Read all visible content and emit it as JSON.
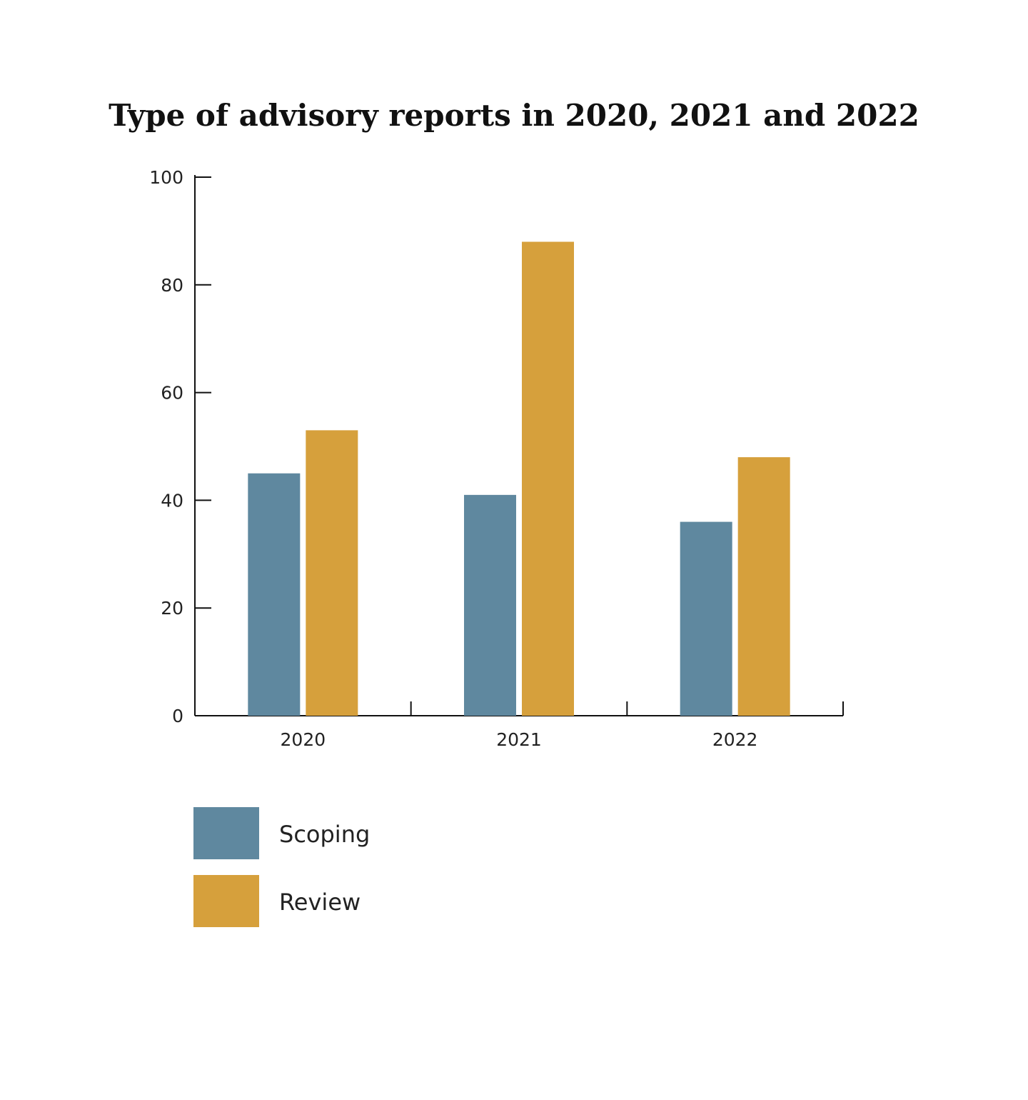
{
  "chart_data": {
    "type": "bar",
    "title": "Type of advisory reports in 2020, 2021 and 2022",
    "xlabel": "",
    "ylabel": "",
    "categories": [
      "2020",
      "2021",
      "2022"
    ],
    "series": [
      {
        "name": "Scoping",
        "color": "#5f889f",
        "values": [
          45,
          41,
          36
        ]
      },
      {
        "name": "Review",
        "color": "#d6a03c",
        "values": [
          53,
          88,
          48
        ]
      }
    ],
    "ylim": [
      0,
      100
    ],
    "yticks": [
      "0",
      "20",
      "40",
      "60",
      "80",
      "100"
    ],
    "grid": false,
    "legend_position": "bottom-left"
  }
}
